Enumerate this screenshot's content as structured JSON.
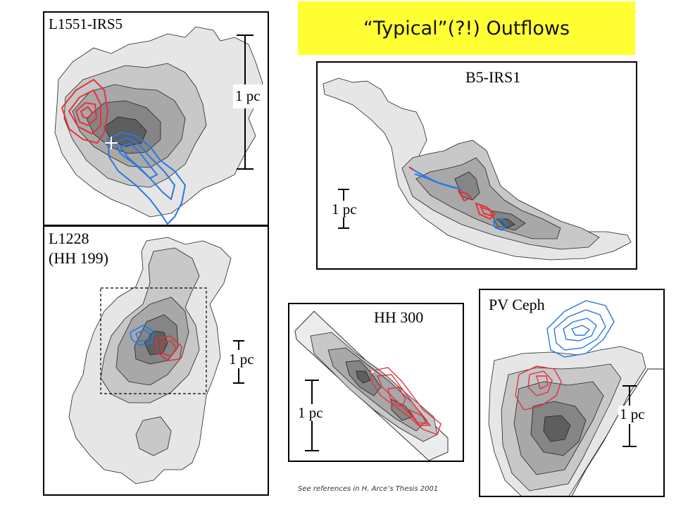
{
  "slide": {
    "title": "“Typical”(?!) Outflows",
    "footnote": "See references in H. Arce’s Thesis 2001"
  },
  "panels": {
    "l1551": {
      "title": "L1551-IRS5",
      "scale": "1 pc"
    },
    "l1228": {
      "title_line1": "L1228",
      "title_line2": "(HH 199)",
      "scale": "1 pc"
    },
    "b5": {
      "title": "B5-IRS1",
      "scale": "1 pc"
    },
    "hh300": {
      "title": "HH 300",
      "scale": "1 pc"
    },
    "pvceph": {
      "title": "PV Ceph",
      "scale": "1 pc"
    }
  },
  "colors": {
    "banner": "#ffff33",
    "redshifted_lobe": "#e8303a",
    "blueshifted_lobe": "#2a78e0",
    "gray_levels": [
      "#e6e6e6",
      "#c8c8c8",
      "#a8a8a8",
      "#858585",
      "#5e5e5e"
    ]
  }
}
